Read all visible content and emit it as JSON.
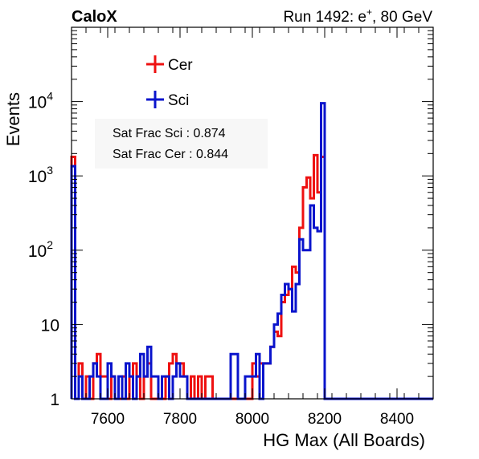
{
  "header": {
    "left_label": "CaloX",
    "right_label": "Run 1492: e",
    "right_label_sup": "+",
    "right_label_tail": ", 80 GeV"
  },
  "annotations": {
    "sat_frac_sci": "Sat Frac Sci : 0.874",
    "sat_frac_cer": "Sat Frac Cer : 0.844"
  },
  "colors": {
    "cer": "#ee1111",
    "sci": "#0a14cc"
  },
  "chart_data": {
    "type": "histogram",
    "xlabel": "HG Max (All Boards)",
    "ylabel": "Events",
    "x_range": [
      7500,
      8500
    ],
    "y_range": [
      1,
      100000
    ],
    "y_scale": "log",
    "bin_width": 10,
    "legend_position": "top-left",
    "x_ticks": [
      {
        "value": 7600,
        "label": "7600"
      },
      {
        "value": 7800,
        "label": "7800"
      },
      {
        "value": 8000,
        "label": "8000"
      },
      {
        "value": 8200,
        "label": "8200"
      },
      {
        "value": 8400,
        "label": "8400"
      }
    ],
    "y_ticks": [
      {
        "value": 1,
        "base": "1",
        "exp": ""
      },
      {
        "value": 10,
        "base": "10",
        "exp": ""
      },
      {
        "value": 100,
        "base": "10",
        "exp": "2"
      },
      {
        "value": 1000,
        "base": "10",
        "exp": "3"
      },
      {
        "value": 10000,
        "base": "10",
        "exp": "4"
      }
    ],
    "series": [
      {
        "name": "Cer",
        "color": "#ee1111",
        "bins": [
          [
            7500,
            1800
          ],
          [
            7510,
            1
          ],
          [
            7520,
            3
          ],
          [
            7530,
            1
          ],
          [
            7540,
            2
          ],
          [
            7550,
            1
          ],
          [
            7560,
            3
          ],
          [
            7570,
            4
          ],
          [
            7580,
            2
          ],
          [
            7590,
            2
          ],
          [
            7600,
            1
          ],
          [
            7610,
            2
          ],
          [
            7620,
            1
          ],
          [
            7630,
            1
          ],
          [
            7640,
            2
          ],
          [
            7650,
            1
          ],
          [
            7660,
            2
          ],
          [
            7670,
            3
          ],
          [
            7680,
            2
          ],
          [
            7690,
            1
          ],
          [
            7700,
            2
          ],
          [
            7710,
            3
          ],
          [
            7720,
            1
          ],
          [
            7730,
            1
          ],
          [
            7740,
            1
          ],
          [
            7750,
            1
          ],
          [
            7760,
            2
          ],
          [
            7770,
            3
          ],
          [
            7780,
            4
          ],
          [
            7790,
            3
          ],
          [
            7800,
            3
          ],
          [
            7810,
            2
          ],
          [
            7820,
            1
          ],
          [
            7830,
            2
          ],
          [
            7840,
            1
          ],
          [
            7850,
            2
          ],
          [
            7860,
            1
          ],
          [
            7870,
            2
          ],
          [
            7880,
            2
          ],
          [
            7890,
            1
          ],
          [
            7900,
            1
          ],
          [
            7910,
            1
          ],
          [
            7920,
            1
          ],
          [
            7930,
            1
          ],
          [
            7940,
            1
          ],
          [
            7950,
            1
          ],
          [
            7960,
            1
          ],
          [
            7970,
            1
          ],
          [
            7980,
            1
          ],
          [
            7990,
            1
          ],
          [
            8000,
            3
          ],
          [
            8010,
            2
          ],
          [
            8020,
            3
          ],
          [
            8030,
            3
          ],
          [
            8040,
            3
          ],
          [
            8050,
            5
          ],
          [
            8060,
            8
          ],
          [
            8070,
            7
          ],
          [
            8080,
            20
          ],
          [
            8090,
            25
          ],
          [
            8100,
            30
          ],
          [
            8110,
            60
          ],
          [
            8120,
            50
          ],
          [
            8130,
            200
          ],
          [
            8140,
            700
          ],
          [
            8150,
            950
          ],
          [
            8160,
            500
          ],
          [
            8170,
            1900
          ],
          [
            8180,
            600
          ],
          [
            8190,
            1800
          ],
          [
            8200,
            1
          ]
        ]
      },
      {
        "name": "Sci",
        "color": "#0a14cc",
        "bins": [
          [
            7500,
            1350
          ],
          [
            7510,
            1
          ],
          [
            7520,
            2
          ],
          [
            7530,
            1
          ],
          [
            7540,
            1
          ],
          [
            7550,
            2
          ],
          [
            7560,
            3
          ],
          [
            7570,
            2
          ],
          [
            7580,
            1
          ],
          [
            7590,
            1
          ],
          [
            7600,
            3
          ],
          [
            7610,
            2
          ],
          [
            7620,
            1
          ],
          [
            7630,
            2
          ],
          [
            7640,
            1
          ],
          [
            7650,
            3
          ],
          [
            7660,
            2
          ],
          [
            7670,
            1
          ],
          [
            7680,
            2
          ],
          [
            7690,
            4
          ],
          [
            7700,
            2
          ],
          [
            7710,
            5
          ],
          [
            7720,
            2
          ],
          [
            7730,
            2
          ],
          [
            7740,
            1
          ],
          [
            7750,
            2
          ],
          [
            7760,
            2
          ],
          [
            7770,
            1
          ],
          [
            7780,
            2
          ],
          [
            7790,
            3
          ],
          [
            7800,
            2
          ],
          [
            7810,
            2
          ],
          [
            7820,
            1
          ],
          [
            7830,
            1
          ],
          [
            7840,
            1
          ],
          [
            7850,
            1
          ],
          [
            7860,
            1
          ],
          [
            7870,
            1
          ],
          [
            7880,
            1
          ],
          [
            7890,
            1
          ],
          [
            7900,
            1
          ],
          [
            7910,
            1
          ],
          [
            7920,
            1
          ],
          [
            7930,
            1
          ],
          [
            7940,
            4
          ],
          [
            7950,
            4
          ],
          [
            7960,
            1
          ],
          [
            7970,
            1
          ],
          [
            7980,
            2
          ],
          [
            7990,
            2
          ],
          [
            8000,
            2
          ],
          [
            8010,
            4
          ],
          [
            8020,
            1
          ],
          [
            8030,
            3
          ],
          [
            8040,
            3
          ],
          [
            8050,
            5
          ],
          [
            8060,
            10
          ],
          [
            8070,
            14
          ],
          [
            8080,
            25
          ],
          [
            8090,
            35
          ],
          [
            8100,
            30
          ],
          [
            8110,
            15
          ],
          [
            8120,
            35
          ],
          [
            8130,
            140
          ],
          [
            8140,
            100
          ],
          [
            8150,
            100
          ],
          [
            8160,
            400
          ],
          [
            8170,
            200
          ],
          [
            8180,
            180
          ],
          [
            8190,
            9500
          ],
          [
            8200,
            1
          ]
        ]
      }
    ]
  }
}
